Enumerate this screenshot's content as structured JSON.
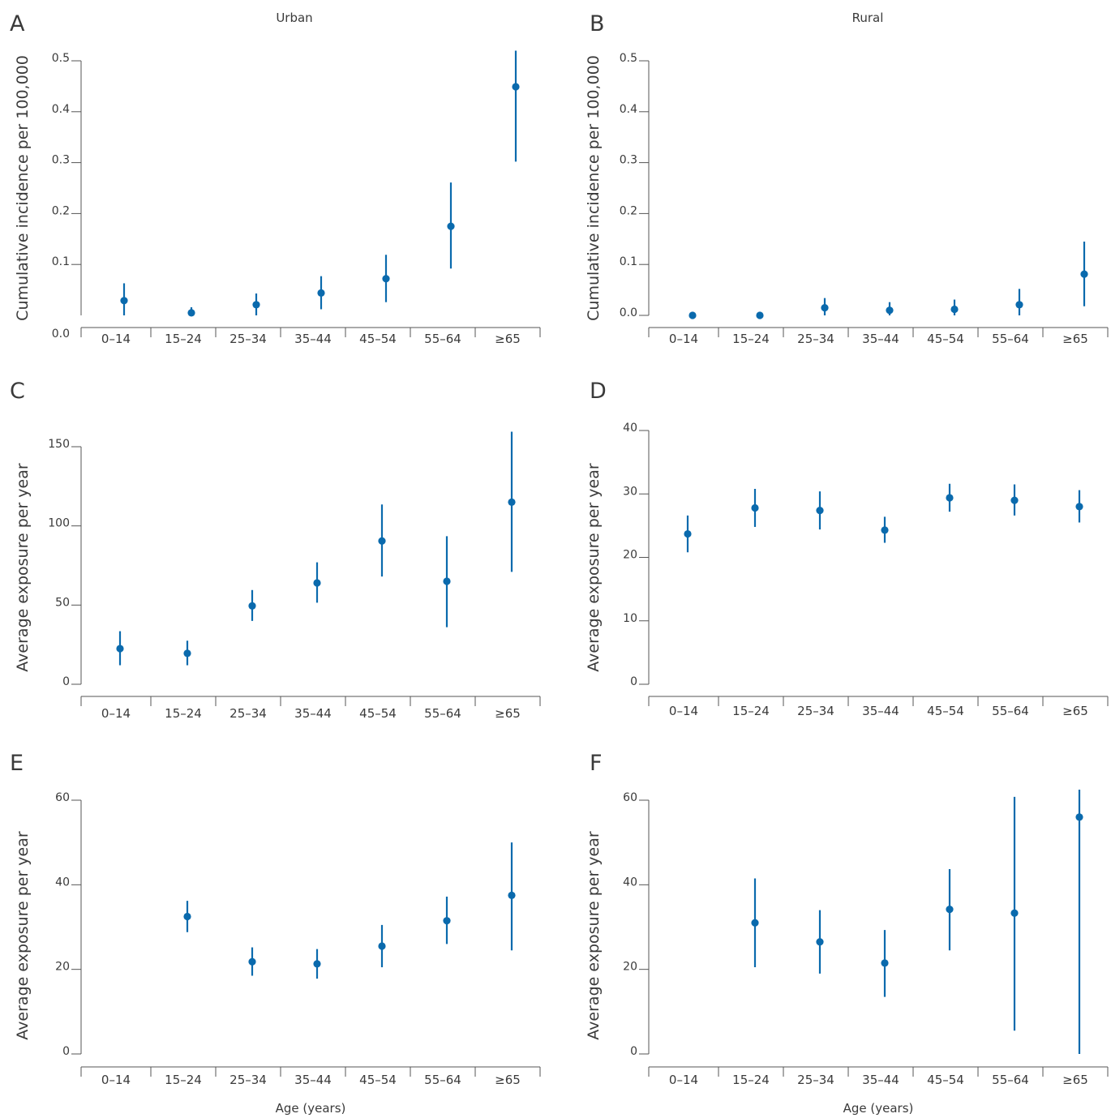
{
  "colors": {
    "marker": "#0a6aad",
    "axis": "#555555",
    "text": "#3a3a3a"
  },
  "chart_data": [
    {
      "panel": "A",
      "title": "Urban",
      "type": "scatter",
      "ylabel": "Cumulative incidence per 100,000",
      "xlabel": "",
      "categories": [
        "0–14",
        "15–24",
        "25–34",
        "35–44",
        "45–54",
        "55–64",
        "≥65"
      ],
      "yticks": [
        0.1,
        0.2,
        0.3,
        0.4,
        0.5
      ],
      "ytick_labels": [
        "0.1",
        "0.2",
        "0.3",
        "0.4",
        "0.5"
      ],
      "extra_ytick_label": "0.0",
      "ylim": [
        0,
        0.5
      ],
      "values": [
        0.029,
        0.005,
        0.021,
        0.044,
        0.072,
        0.175,
        0.449
      ],
      "lower": [
        0.0,
        0.0,
        0.0,
        0.012,
        0.026,
        0.092,
        0.302
      ],
      "upper": [
        0.063,
        0.016,
        0.043,
        0.077,
        0.119,
        0.261,
        0.52
      ]
    },
    {
      "panel": "B",
      "title": "Rural",
      "type": "scatter",
      "ylabel": "Cumulative incidence per 100,000",
      "xlabel": "",
      "categories": [
        "0–14",
        "15–24",
        "25–34",
        "35–44",
        "45–54",
        "55–64",
        "≥65"
      ],
      "yticks": [
        0.0,
        0.1,
        0.2,
        0.3,
        0.4,
        0.5
      ],
      "ytick_labels": [
        "0.0",
        "0.1",
        "0.2",
        "0.3",
        "0.4",
        "0.5"
      ],
      "ylim": [
        0,
        0.5
      ],
      "values": [
        0.0,
        0.0,
        0.015,
        0.01,
        0.012,
        0.021,
        0.081
      ],
      "lower": [
        0.0,
        0.0,
        0.0,
        0.0,
        0.0,
        0.0,
        0.018
      ],
      "upper": [
        0.0,
        0.0,
        0.034,
        0.026,
        0.031,
        0.052,
        0.145
      ]
    },
    {
      "panel": "C",
      "title": "",
      "type": "scatter",
      "ylabel": "Average exposure per year",
      "xlabel": "",
      "categories": [
        "0–14",
        "15–24",
        "25–34",
        "35–44",
        "45–54",
        "55–64",
        "≥65"
      ],
      "yticks": [
        0,
        50,
        100,
        150
      ],
      "ytick_labels": [
        "0",
        "50",
        "100",
        "150"
      ],
      "ylim": [
        0,
        150
      ],
      "values": [
        22.5,
        19.5,
        49.5,
        64,
        90.5,
        65,
        115
      ],
      "lower": [
        12,
        12,
        40,
        51.5,
        68,
        36,
        71
      ],
      "upper": [
        33.5,
        27.5,
        59.5,
        77,
        113.5,
        93.5,
        159.5
      ]
    },
    {
      "panel": "D",
      "title": "",
      "type": "scatter",
      "ylabel": "Average exposure per year",
      "xlabel": "",
      "categories": [
        "0–14",
        "15–24",
        "25–34",
        "35–44",
        "45–54",
        "55–64",
        "≥65"
      ],
      "yticks": [
        0,
        10,
        20,
        30,
        40
      ],
      "ytick_labels": [
        "0",
        "10",
        "20",
        "30",
        "40"
      ],
      "ylim": [
        0,
        40
      ],
      "values": [
        23.7,
        27.8,
        27.4,
        24.3,
        29.4,
        29,
        28
      ],
      "lower": [
        20.8,
        24.8,
        24.4,
        22.3,
        27.2,
        26.6,
        25.5
      ],
      "upper": [
        26.6,
        30.8,
        30.4,
        26.4,
        31.6,
        31.5,
        30.6
      ]
    },
    {
      "panel": "E",
      "title": "",
      "type": "scatter",
      "ylabel": "Average exposure per year",
      "xlabel": "Age (years)",
      "categories": [
        "0–14",
        "15–24",
        "25–34",
        "35–44",
        "45–54",
        "55–64",
        "≥65"
      ],
      "yticks": [
        0,
        20,
        40,
        60
      ],
      "ytick_labels": [
        "0",
        "20",
        "40",
        "60"
      ],
      "ylim": [
        0,
        60
      ],
      "values": [
        null,
        32.5,
        21.8,
        21.3,
        25.5,
        31.5,
        37.5
      ],
      "lower": [
        null,
        28.8,
        18.5,
        17.8,
        20.5,
        26,
        24.5
      ],
      "upper": [
        null,
        36.2,
        25.2,
        24.8,
        30.5,
        37.2,
        50
      ]
    },
    {
      "panel": "F",
      "title": "",
      "type": "scatter",
      "ylabel": "Average exposure per year",
      "xlabel": "Age (years)",
      "categories": [
        "0–14",
        "15–24",
        "25–34",
        "35–44",
        "45–54",
        "55–64",
        "≥65"
      ],
      "yticks": [
        0,
        20,
        40,
        60
      ],
      "ytick_labels": [
        "0",
        "20",
        "40",
        "60"
      ],
      "ylim": [
        0,
        60
      ],
      "values": [
        null,
        31,
        26.5,
        21.5,
        34.2,
        33.3,
        56
      ],
      "lower": [
        null,
        20.5,
        19,
        13.5,
        24.5,
        5.5,
        0
      ],
      "upper": [
        null,
        41.5,
        34,
        29.3,
        43.7,
        60.8,
        62.5
      ]
    }
  ]
}
